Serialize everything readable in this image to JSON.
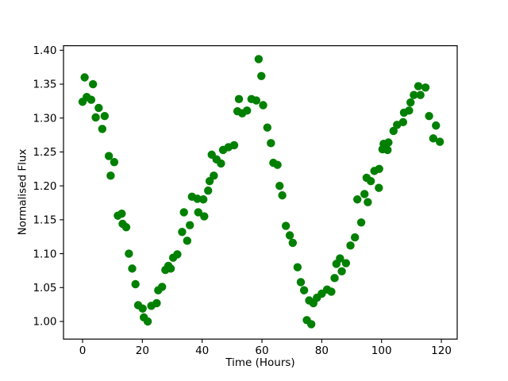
{
  "figure": {
    "background": "#ffffff",
    "text_color": "#000000",
    "spine_color": "#000000"
  },
  "chart_data": {
    "type": "scatter",
    "title": "",
    "xlabel": "Time (Hours)",
    "ylabel": "Normalised Flux",
    "legend": null,
    "grid": false,
    "marker": {
      "shape": "circle",
      "color": "#008000",
      "radius_px": 5.2
    },
    "axes": {
      "xlim": [
        -6.37,
        125.3
      ],
      "ylim": [
        0.974,
        1.4067
      ],
      "x_ticks": [
        0,
        20,
        40,
        60,
        80,
        100,
        120
      ],
      "x_tick_labels": [
        "0",
        "20",
        "40",
        "60",
        "80",
        "100",
        "120"
      ],
      "y_ticks": [
        1.0,
        1.05,
        1.1,
        1.15,
        1.2,
        1.25,
        1.3,
        1.35,
        1.4
      ],
      "y_tick_labels": [
        "1.00",
        "1.05",
        "1.10",
        "1.15",
        "1.20",
        "1.25",
        "1.30",
        "1.35",
        "1.40"
      ]
    },
    "points": [
      [
        0.0,
        1.324
      ],
      [
        0.7,
        1.36
      ],
      [
        1.4,
        1.331
      ],
      [
        2.9,
        1.327
      ],
      [
        3.5,
        1.35
      ],
      [
        4.4,
        1.301
      ],
      [
        5.4,
        1.315
      ],
      [
        6.6,
        1.284
      ],
      [
        7.4,
        1.303
      ],
      [
        8.8,
        1.244
      ],
      [
        9.4,
        1.215
      ],
      [
        10.6,
        1.235
      ],
      [
        11.8,
        1.156
      ],
      [
        13.1,
        1.159
      ],
      [
        13.4,
        1.144
      ],
      [
        14.6,
        1.139
      ],
      [
        15.5,
        1.1
      ],
      [
        16.6,
        1.078
      ],
      [
        17.7,
        1.055
      ],
      [
        18.6,
        1.024
      ],
      [
        20.1,
        1.019
      ],
      [
        20.5,
        1.006
      ],
      [
        21.8,
        1.0
      ],
      [
        23.0,
        1.023
      ],
      [
        24.8,
        1.027
      ],
      [
        25.3,
        1.046
      ],
      [
        26.6,
        1.051
      ],
      [
        27.7,
        1.076
      ],
      [
        28.7,
        1.082
      ],
      [
        29.5,
        1.078
      ],
      [
        30.3,
        1.094
      ],
      [
        31.7,
        1.099
      ],
      [
        33.3,
        1.132
      ],
      [
        33.9,
        1.161
      ],
      [
        35.0,
        1.119
      ],
      [
        35.9,
        1.142
      ],
      [
        36.6,
        1.184
      ],
      [
        38.4,
        1.181
      ],
      [
        38.7,
        1.161
      ],
      [
        40.4,
        1.18
      ],
      [
        40.7,
        1.155
      ],
      [
        42.0,
        1.193
      ],
      [
        42.5,
        1.207
      ],
      [
        43.2,
        1.246
      ],
      [
        43.9,
        1.215
      ],
      [
        44.8,
        1.239
      ],
      [
        46.3,
        1.233
      ],
      [
        47.0,
        1.253
      ],
      [
        48.8,
        1.257
      ],
      [
        50.7,
        1.26
      ],
      [
        51.8,
        1.31
      ],
      [
        52.3,
        1.328
      ],
      [
        53.4,
        1.307
      ],
      [
        55.0,
        1.311
      ],
      [
        56.5,
        1.328
      ],
      [
        58.1,
        1.326
      ],
      [
        58.9,
        1.387
      ],
      [
        59.8,
        1.362
      ],
      [
        60.4,
        1.319
      ],
      [
        61.8,
        1.286
      ],
      [
        63.0,
        1.263
      ],
      [
        63.8,
        1.234
      ],
      [
        65.2,
        1.231
      ],
      [
        65.9,
        1.2
      ],
      [
        66.8,
        1.186
      ],
      [
        68.0,
        1.141
      ],
      [
        69.3,
        1.127
      ],
      [
        70.3,
        1.116
      ],
      [
        71.9,
        1.08
      ],
      [
        73.0,
        1.058
      ],
      [
        74.1,
        1.046
      ],
      [
        75.0,
        1.002
      ],
      [
        75.8,
        1.031
      ],
      [
        76.5,
        0.996
      ],
      [
        77.2,
        1.027
      ],
      [
        78.4,
        1.035
      ],
      [
        80.0,
        1.041
      ],
      [
        81.8,
        1.047
      ],
      [
        83.2,
        1.044
      ],
      [
        84.3,
        1.064
      ],
      [
        84.9,
        1.085
      ],
      [
        86.1,
        1.093
      ],
      [
        86.7,
        1.074
      ],
      [
        88.1,
        1.086
      ],
      [
        89.6,
        1.112
      ],
      [
        91.1,
        1.124
      ],
      [
        91.9,
        1.18
      ],
      [
        93.2,
        1.146
      ],
      [
        94.3,
        1.188
      ],
      [
        95.0,
        1.212
      ],
      [
        95.4,
        1.176
      ],
      [
        96.4,
        1.207
      ],
      [
        97.6,
        1.222
      ],
      [
        99.1,
        1.197
      ],
      [
        99.2,
        1.225
      ],
      [
        100.3,
        1.254
      ],
      [
        100.7,
        1.262
      ],
      [
        102.0,
        1.253
      ],
      [
        102.3,
        1.264
      ],
      [
        104.0,
        1.281
      ],
      [
        105.2,
        1.29
      ],
      [
        107.2,
        1.294
      ],
      [
        107.5,
        1.308
      ],
      [
        109.2,
        1.311
      ],
      [
        109.7,
        1.323
      ],
      [
        110.8,
        1.334
      ],
      [
        112.3,
        1.347
      ],
      [
        113.0,
        1.334
      ],
      [
        114.7,
        1.345
      ],
      [
        115.9,
        1.303
      ],
      [
        117.3,
        1.27
      ],
      [
        118.2,
        1.289
      ],
      [
        119.5,
        1.265
      ]
    ]
  }
}
